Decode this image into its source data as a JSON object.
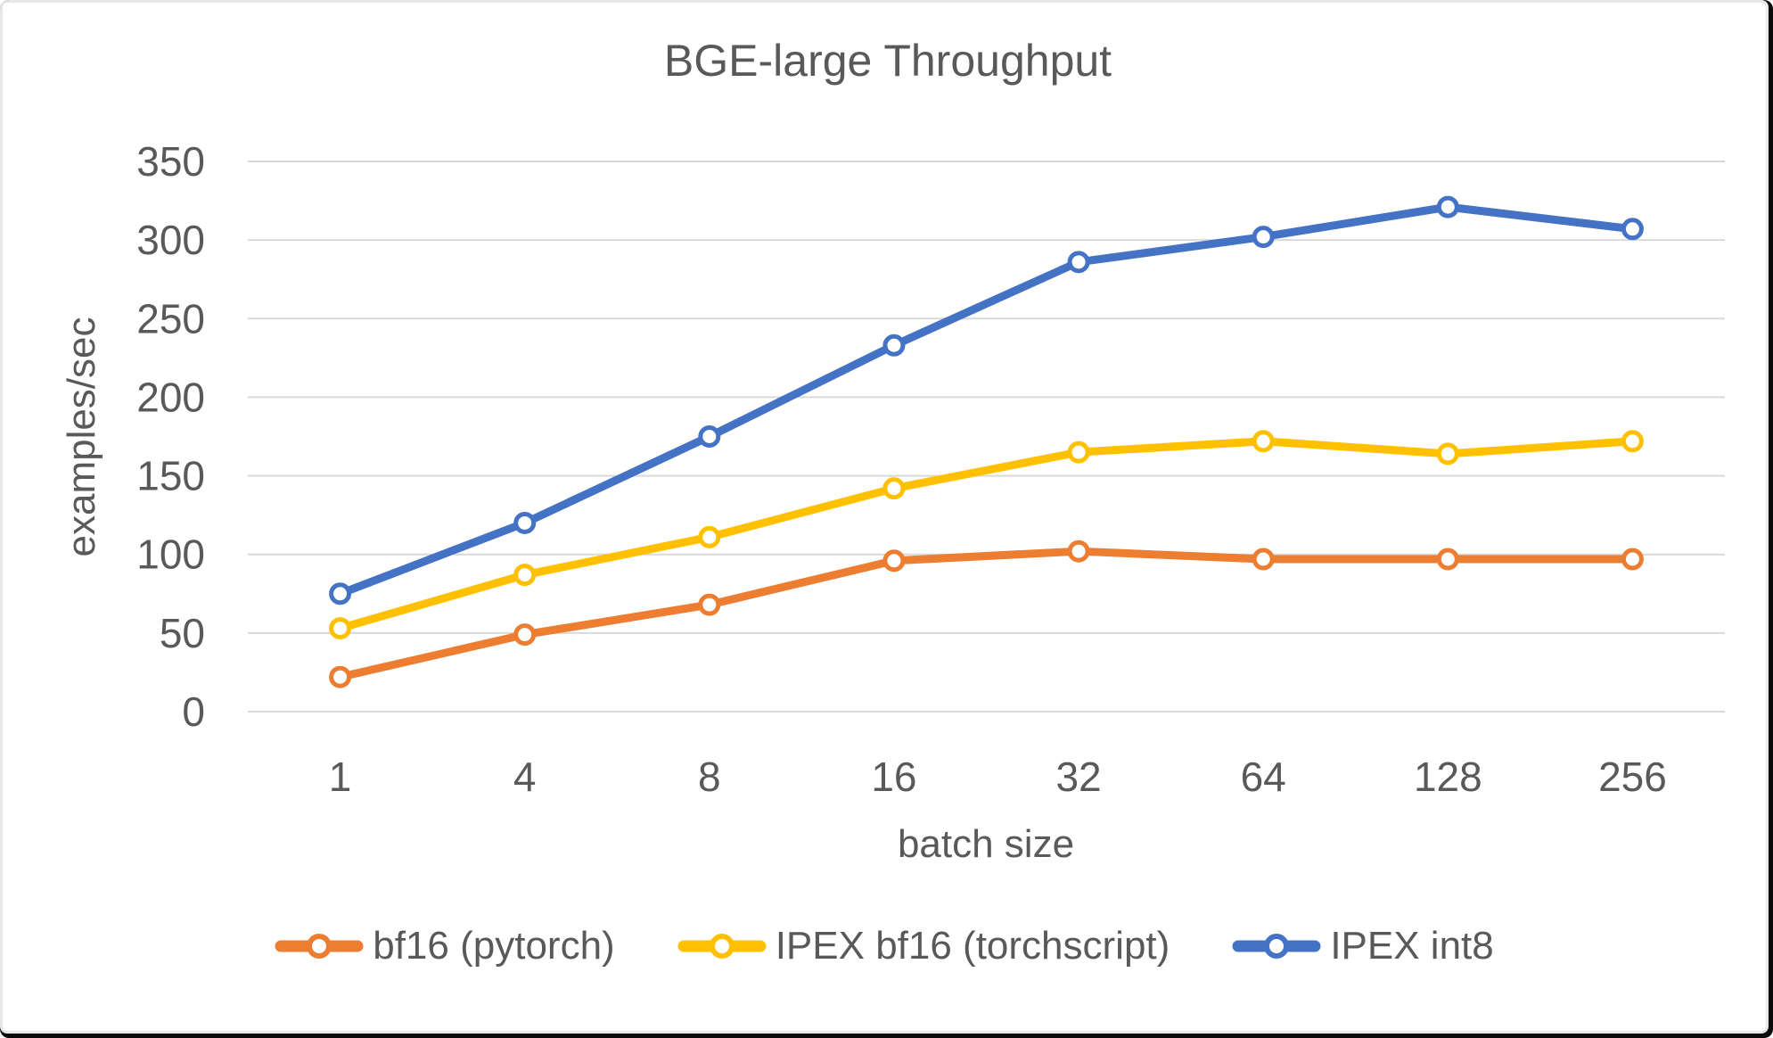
{
  "chart_data": {
    "type": "line",
    "title": "BGE-large Throughput",
    "xlabel": "batch size",
    "ylabel": "examples/sec",
    "categories": [
      "1",
      "4",
      "8",
      "16",
      "32",
      "64",
      "128",
      "256"
    ],
    "y_ticks": [
      0,
      50,
      100,
      150,
      200,
      250,
      300,
      350
    ],
    "ylim": [
      0,
      350
    ],
    "grid": true,
    "legend_position": "bottom",
    "marker": "open-circle",
    "series": [
      {
        "name": "bf16 (pytorch)",
        "color": "#ED7D31",
        "values": [
          22,
          49,
          68,
          96,
          102,
          97,
          97,
          97
        ]
      },
      {
        "name": "IPEX bf16 (torchscript)",
        "color": "#FFC000",
        "values": [
          53,
          87,
          111,
          142,
          165,
          172,
          164,
          172
        ]
      },
      {
        "name": "IPEX int8",
        "color": "#4472C4",
        "values": [
          75,
          120,
          175,
          233,
          286,
          302,
          321,
          307
        ]
      }
    ]
  },
  "colors": {
    "gridline": "#D9D9D9",
    "axis_text": "#595959",
    "plot_background": "#FFFFFF",
    "frame_border": "#E7E7E7",
    "frame_edge": "#0B0B0B"
  }
}
